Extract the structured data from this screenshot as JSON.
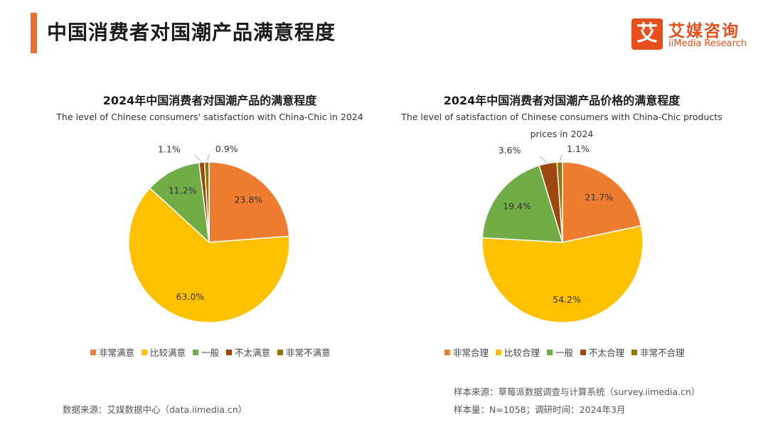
{
  "header": {
    "title": "中国消费者对国潮产品满意程度"
  },
  "logo": {
    "mark": "艾",
    "cn": "艾媒咨询",
    "en": "iiMedia Research"
  },
  "colors": [
    "#ee7d31",
    "#ffc000",
    "#70ad47",
    "#9e480e",
    "#997300"
  ],
  "chart_data": [
    {
      "type": "pie",
      "title": "2024年中国消费者对国潮产品的满意程度",
      "subtitle": "The level of Chinese consumers' satisfaction with China-Chic in 2024",
      "categories": [
        "非常满意",
        "比较满意",
        "一般",
        "不太满意",
        "非常不满意"
      ],
      "values": [
        23.8,
        63.0,
        11.2,
        1.1,
        0.9
      ],
      "labels": [
        "23.8%",
        "63.0%",
        "11.2%",
        "1.1%",
        "0.9%"
      ],
      "legend_position": "bottom"
    },
    {
      "type": "pie",
      "title": "2024年中国消费者对国潮产品价格的满意程度",
      "subtitle": "The level of satisfaction of Chinese consumers with China-Chic products prices in 2024",
      "categories": [
        "非常合理",
        "比较合理",
        "一般",
        "不太合理",
        "非常不合理"
      ],
      "values": [
        21.7,
        54.2,
        19.4,
        3.6,
        1.1
      ],
      "labels": [
        "21.7%",
        "54.2%",
        "19.4%",
        "3.6%",
        "1.1%"
      ],
      "legend_position": "bottom"
    }
  ],
  "footer": {
    "source_left": "数据来源：艾媒数据中心（data.iimedia.cn）",
    "sample_source": "样本来源：草莓派数据调查与计算系统（survey.iimedia.cn）",
    "sample_size": "样本量：N=1058；调研时间：2024年3月"
  }
}
